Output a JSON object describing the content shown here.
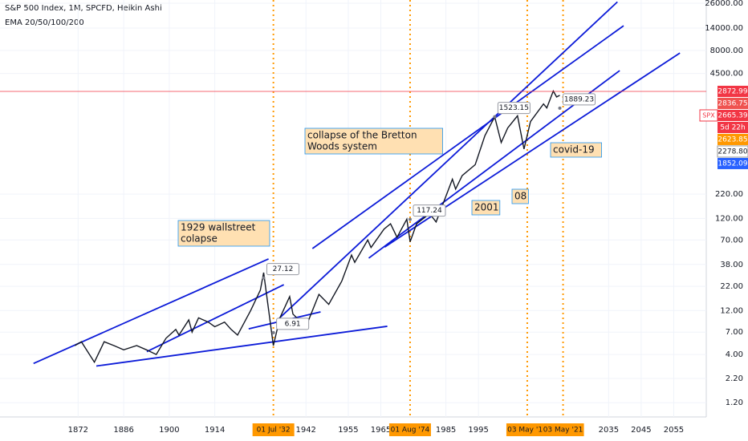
{
  "chart_data": {
    "type": "line",
    "title": "S&P 500 Index, 1M, SPCFD, Heikin Ashi",
    "subtitle": "EMA 20/50/100/200",
    "log_scale": true,
    "grid": true,
    "color": "#131722",
    "x": [
      1871,
      1873,
      1877,
      1880,
      1883,
      1886,
      1890,
      1893,
      1896,
      1899,
      1902,
      1903,
      1906,
      1907,
      1909,
      1912,
      1914,
      1917,
      1919,
      1921,
      1925,
      1928,
      1929,
      1932,
      1934,
      1937,
      1938,
      1942,
      1946,
      1949,
      1953,
      1956,
      1957,
      1961,
      1962,
      1966,
      1968,
      1970,
      1973,
      1974,
      1976,
      1980,
      1982,
      1987,
      1988,
      1990,
      1994,
      1997,
      2000,
      2002,
      2004,
      2007,
      2009,
      2011,
      2015,
      2016,
      2018,
      2019,
      2020
    ],
    "values": [
      5,
      5.5,
      3.3,
      5.5,
      5,
      4.5,
      5,
      4.5,
      4,
      6,
      7.5,
      6.5,
      9.5,
      7,
      10,
      9,
      8,
      9,
      7.5,
      6.5,
      12,
      20,
      31,
      5,
      10,
      17,
      11,
      8,
      18,
      14,
      25,
      48,
      40,
      70,
      58,
      92,
      105,
      75,
      118,
      67,
      105,
      135,
      110,
      320,
      250,
      350,
      460,
      950,
      1520,
      800,
      1150,
      1560,
      680,
      1350,
      2100,
      1900,
      2900,
      2500,
      2600
    ],
    "xlim": [
      1848,
      2065
    ],
    "xticks": [
      1872,
      1886,
      1900,
      1914,
      1942,
      1955,
      1965,
      1985,
      1995,
      2035,
      2045,
      2055
    ],
    "x_highlights": [
      {
        "value": 1932,
        "label": "01 Jul '32"
      },
      {
        "value": 1974,
        "label": "01 Aug '74"
      },
      {
        "value": 2010,
        "label": "03 May '10"
      },
      {
        "value": 2021,
        "label": "03 May '21"
      }
    ],
    "ylim": [
      0.84,
      28200
    ],
    "yticks": [
      {
        "value": 26000,
        "label": "26000.00"
      },
      {
        "value": 14000,
        "label": "14000.00"
      },
      {
        "value": 8000,
        "label": "8000.00"
      },
      {
        "value": 4500,
        "label": "4500.00"
      },
      {
        "value": 220,
        "label": "220.00"
      },
      {
        "value": 120,
        "label": "120.00"
      },
      {
        "value": 70,
        "label": "70.00"
      },
      {
        "value": 38,
        "label": "38.00"
      },
      {
        "value": 22,
        "label": "22.00"
      },
      {
        "value": 12,
        "label": "12.00"
      },
      {
        "value": 7,
        "label": "7.00"
      },
      {
        "value": 4,
        "label": "4.00"
      },
      {
        "value": 2.2,
        "label": "2.20"
      },
      {
        "value": 1.2,
        "label": "1.20"
      }
    ],
    "price_labels": [
      {
        "value": 2872.99,
        "color": "#f23645"
      },
      {
        "value": 2836.75,
        "color": "#ef5350"
      },
      {
        "value": 2665.39,
        "name": "SPX",
        "color": "#f23645"
      },
      {
        "value": 2623.85,
        "color": "#ff9800"
      },
      {
        "value": 2278.8,
        "label": "2278.80",
        "color": "#ffffff"
      },
      {
        "value": 1852.09,
        "color": "#2962ff"
      }
    ],
    "countdown": "5d 22h",
    "callouts": [
      {
        "x": 1929,
        "value": 27.12
      },
      {
        "x": 1932,
        "value": 6.91
      },
      {
        "x": 1974,
        "value": 117.24
      },
      {
        "x": 2000,
        "value": 1523.15
      },
      {
        "x": 2020,
        "value": 1889.23
      }
    ],
    "trendlines": [
      {
        "from": [
          1858.3,
          3.2
        ],
        "to": [
          1930.5,
          43.6
        ]
      },
      {
        "from": [
          1893.1,
          4.3
        ],
        "to": [
          1935.2,
          22.9
        ]
      },
      {
        "from": [
          1877.6,
          3.0
        ],
        "to": [
          1967,
          8.1
        ]
      },
      {
        "from": [
          1924.4,
          7.6
        ],
        "to": [
          1946.5,
          11.6
        ]
      },
      {
        "from": [
          1933,
          9.3
        ],
        "to": [
          2037.7,
          26900
        ]
      },
      {
        "from": [
          1944,
          56.5
        ],
        "to": [
          2039.6,
          14800
        ]
      },
      {
        "from": [
          1961.3,
          44.5
        ],
        "to": [
          2038.4,
          4830
        ]
      },
      {
        "from": [
          1966.2,
          58.7
        ],
        "to": [
          2056.9,
          7500
        ]
      }
    ],
    "annotations": [
      [
        "1929 wallstreet",
        "colapse"
      ],
      [
        "collapse of the Bretton",
        "Woods system"
      ],
      [
        "2001"
      ],
      [
        "08"
      ],
      [
        "covid-19"
      ]
    ]
  }
}
